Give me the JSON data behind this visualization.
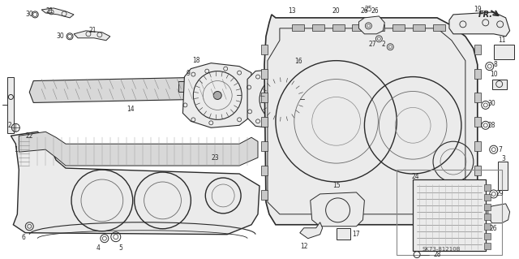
{
  "bg_color": "#ffffff",
  "line_color": "#2a2a2a",
  "gray_fill": "#d8d8d8",
  "light_fill": "#ebebeb",
  "diagram_code": "SK73-81210B",
  "figsize": [
    6.4,
    3.19
  ],
  "dpi": 100
}
